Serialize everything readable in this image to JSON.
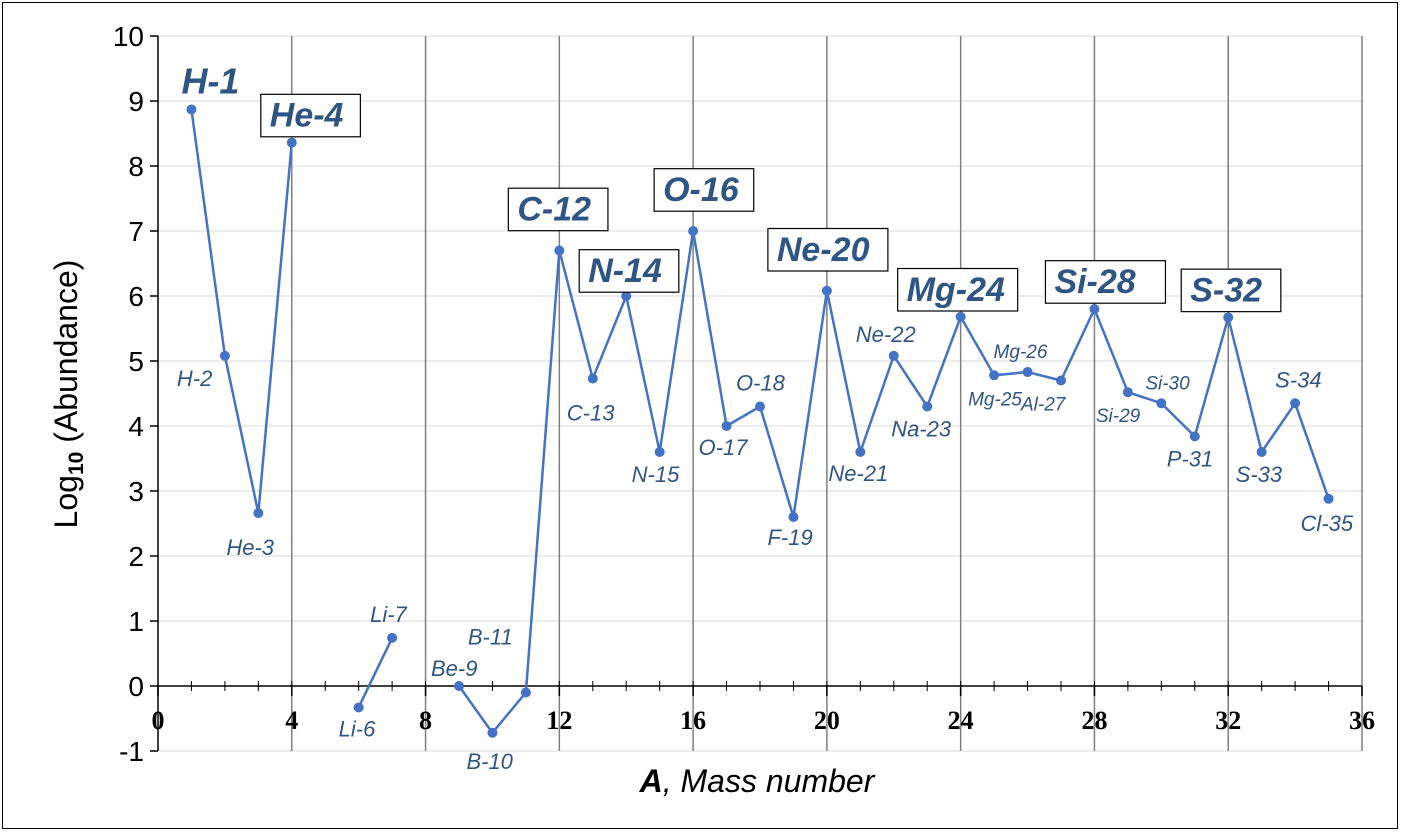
{
  "chart_data": {
    "type": "line",
    "title": "",
    "xlabel_bold": "A",
    "xlabel_rest": ", Mass number",
    "ylabel_main": "Log",
    "ylabel_sub": "10",
    "ylabel_rest": " (Abundance)",
    "xlim": [
      0,
      36
    ],
    "ylim": [
      -1,
      10
    ],
    "xticks": [
      0,
      4,
      8,
      12,
      16,
      20,
      24,
      28,
      32,
      36
    ],
    "yticks": [
      -1,
      0,
      1,
      2,
      3,
      4,
      5,
      6,
      7,
      8,
      9,
      10
    ],
    "grid": {
      "vertical_major": true,
      "horizontal": true
    },
    "line_color": "#4472c4",
    "label_color": "#2f5585",
    "segments": [
      {
        "name": "",
        "points": [
          {
            "x": 1,
            "y": 8.87,
            "label": "H-1",
            "major": true
          },
          {
            "x": 2,
            "y": 5.08,
            "label": "H-2"
          },
          {
            "x": 3,
            "y": 2.66,
            "label": "He-3"
          },
          {
            "x": 4,
            "y": 8.36,
            "label": "He-4",
            "major": true,
            "boxed": true
          }
        ]
      },
      {
        "name": "",
        "points": [
          {
            "x": 6,
            "y": -0.33,
            "label": "Li-6"
          },
          {
            "x": 7,
            "y": 0.74,
            "label": "Li-7"
          }
        ]
      },
      {
        "name": "",
        "points": [
          {
            "x": 9,
            "y": 0.0,
            "label": "Be-9"
          },
          {
            "x": 10,
            "y": -0.72,
            "label": "B-10"
          },
          {
            "x": 11,
            "y": -0.1,
            "label": "B-11"
          },
          {
            "x": 12,
            "y": 6.7,
            "label": "C-12",
            "major": true,
            "boxed": true
          },
          {
            "x": 13,
            "y": 4.73,
            "label": "C-13"
          },
          {
            "x": 14,
            "y": 6.0,
            "label": "N-14",
            "major": true,
            "boxed": true
          },
          {
            "x": 15,
            "y": 3.6,
            "label": "N-15"
          },
          {
            "x": 16,
            "y": 7.0,
            "label": "O-16",
            "major": true,
            "boxed": true
          },
          {
            "x": 17,
            "y": 4.0,
            "label": "O-17"
          },
          {
            "x": 18,
            "y": 4.3,
            "label": "O-18"
          },
          {
            "x": 19,
            "y": 2.6,
            "label": "F-19"
          },
          {
            "x": 20,
            "y": 6.08,
            "label": "Ne-20",
            "major": true,
            "boxed": true
          },
          {
            "x": 21,
            "y": 3.6,
            "label": "Ne-21"
          },
          {
            "x": 22,
            "y": 5.08,
            "label": "Ne-22"
          },
          {
            "x": 23,
            "y": 4.3,
            "label": "Na-23"
          },
          {
            "x": 24,
            "y": 5.68,
            "label": "Mg-24",
            "major": true,
            "boxed": true
          },
          {
            "x": 25,
            "y": 4.78,
            "label": "Mg-25"
          },
          {
            "x": 26,
            "y": 4.83,
            "label": "Mg-26"
          },
          {
            "x": 27,
            "y": 4.7,
            "label": "Al-27"
          },
          {
            "x": 28,
            "y": 5.8,
            "label": "Si-28",
            "major": true,
            "boxed": true
          },
          {
            "x": 29,
            "y": 4.52,
            "label": "Si-29"
          },
          {
            "x": 30,
            "y": 4.35,
            "label": "Si-30"
          },
          {
            "x": 31,
            "y": 3.84,
            "label": "P-31"
          },
          {
            "x": 32,
            "y": 5.67,
            "label": "S-32",
            "major": true,
            "boxed": true
          },
          {
            "x": 33,
            "y": 3.6,
            "label": "S-33"
          },
          {
            "x": 34,
            "y": 4.35,
            "label": "S-34"
          },
          {
            "x": 35,
            "y": 2.88,
            "label": "Cl-35"
          }
        ]
      }
    ]
  }
}
